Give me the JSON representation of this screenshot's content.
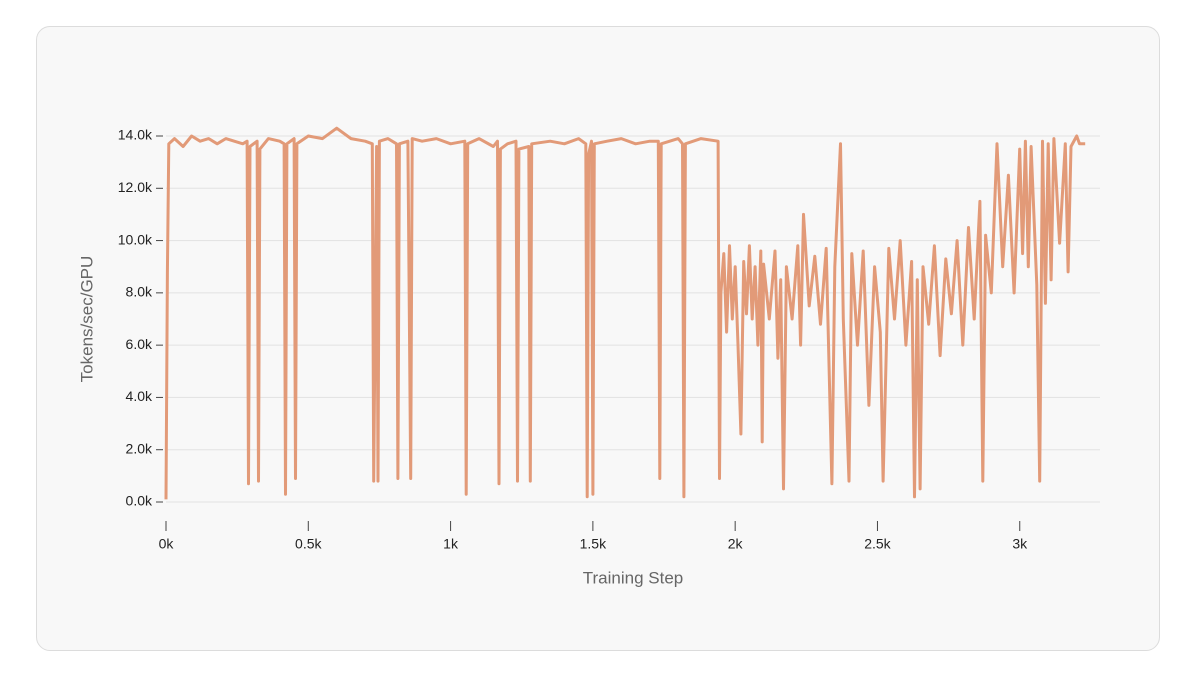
{
  "chart_data": {
    "type": "line",
    "x_label": "Training Step",
    "y_label": "Tokens/sec/GPU",
    "xlim": [
      0,
      3282
    ],
    "ylim": [
      0,
      14000
    ],
    "xticks": [
      {
        "value": 0,
        "label": "0k"
      },
      {
        "value": 500,
        "label": "0.5k"
      },
      {
        "value": 1000,
        "label": "1k"
      },
      {
        "value": 1500,
        "label": "1.5k"
      },
      {
        "value": 2000,
        "label": "2k"
      },
      {
        "value": 2500,
        "label": "2.5k"
      },
      {
        "value": 3000,
        "label": "3k"
      }
    ],
    "yticks": [
      {
        "value": 0,
        "label": "0.0k"
      },
      {
        "value": 2000,
        "label": "2.0k"
      },
      {
        "value": 4000,
        "label": "4.0k"
      },
      {
        "value": 6000,
        "label": "6.0k"
      },
      {
        "value": 8000,
        "label": "8.0k"
      },
      {
        "value": 10000,
        "label": "10.0k"
      },
      {
        "value": 12000,
        "label": "12.0k"
      },
      {
        "value": 14000,
        "label": "14.0k"
      }
    ],
    "grid": true,
    "color": "#e29a78",
    "x": [
      0,
      5,
      10,
      30,
      60,
      90,
      120,
      150,
      180,
      210,
      240,
      270,
      285,
      290,
      295,
      320,
      325,
      330,
      360,
      400,
      415,
      420,
      425,
      450,
      455,
      460,
      500,
      550,
      600,
      650,
      700,
      725,
      730,
      740,
      745,
      750,
      780,
      810,
      815,
      820,
      850,
      860,
      865,
      900,
      950,
      1000,
      1050,
      1055,
      1060,
      1100,
      1150,
      1165,
      1170,
      1175,
      1200,
      1230,
      1235,
      1240,
      1275,
      1280,
      1285,
      1350,
      1400,
      1450,
      1475,
      1480,
      1485,
      1495,
      1500,
      1505,
      1550,
      1600,
      1650,
      1700,
      1730,
      1735,
      1740,
      1800,
      1815,
      1820,
      1825,
      1880,
      1940,
      1945,
      1950,
      1960,
      1970,
      1980,
      1990,
      2000,
      2010,
      2020,
      2030,
      2040,
      2050,
      2060,
      2070,
      2080,
      2090,
      2095,
      2100,
      2120,
      2140,
      2150,
      2160,
      2170,
      2180,
      2200,
      2220,
      2230,
      2240,
      2260,
      2280,
      2300,
      2320,
      2340,
      2350,
      2370,
      2380,
      2400,
      2410,
      2430,
      2450,
      2470,
      2490,
      2510,
      2520,
      2540,
      2560,
      2580,
      2600,
      2620,
      2630,
      2640,
      2650,
      2660,
      2680,
      2700,
      2720,
      2740,
      2760,
      2780,
      2800,
      2820,
      2840,
      2860,
      2870,
      2880,
      2900,
      2920,
      2940,
      2960,
      2980,
      3000,
      3010,
      3020,
      3030,
      3040,
      3060,
      3070,
      3080,
      3090,
      3100,
      3110,
      3120,
      3140,
      3160,
      3170,
      3180,
      3200,
      3210,
      3230
    ],
    "values": [
      100,
      8800,
      13700,
      13900,
      13600,
      14000,
      13800,
      13900,
      13700,
      13900,
      13800,
      13700,
      13800,
      700,
      13600,
      13800,
      800,
      13500,
      13900,
      13800,
      13700,
      300,
      13700,
      13900,
      900,
      13700,
      14000,
      13900,
      14300,
      13900,
      13800,
      13700,
      800,
      13600,
      800,
      13800,
      13900,
      13700,
      900,
      13700,
      13800,
      900,
      13900,
      13800,
      13900,
      13700,
      13800,
      300,
      13700,
      13900,
      13600,
      13800,
      700,
      13500,
      13700,
      13800,
      800,
      13500,
      13600,
      800,
      13700,
      13800,
      13700,
      13900,
      13700,
      200,
      13300,
      13800,
      300,
      13700,
      13800,
      13900,
      13700,
      13800,
      13800,
      900,
      13700,
      13900,
      13700,
      200,
      13700,
      13900,
      13800,
      900,
      8000,
      9500,
      6500,
      9800,
      7000,
      9000,
      6000,
      2600,
      9200,
      7200,
      9800,
      7000,
      9000,
      6000,
      9600,
      2300,
      9100,
      7000,
      9600,
      5500,
      8500,
      500,
      9000,
      7000,
      9800,
      6000,
      11000,
      7500,
      9400,
      6800,
      9700,
      700,
      9000,
      13700,
      7000,
      800,
      9500,
      6000,
      9600,
      3700,
      9000,
      6500,
      800,
      9700,
      7000,
      10000,
      6000,
      9200,
      200,
      8500,
      500,
      9000,
      6800,
      9800,
      5600,
      9300,
      7200,
      10000,
      6000,
      10500,
      7000,
      11500,
      800,
      10200,
      8000,
      13700,
      9000,
      12500,
      8000,
      13500,
      9500,
      13800,
      9000,
      13600,
      8300,
      800,
      13800,
      7600,
      13700,
      8500,
      13900,
      9900,
      13700,
      8800,
      13600,
      14000,
      13700,
      13700
    ]
  }
}
